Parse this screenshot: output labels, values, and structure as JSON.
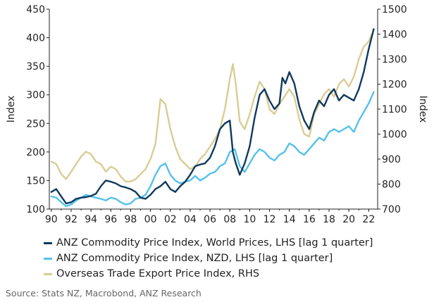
{
  "chart_data": {
    "type": "line",
    "ylabel_left": "Index",
    "ylabel_right": "Index",
    "ylim_left": [
      100,
      450
    ],
    "ylim_right": [
      700,
      1500
    ],
    "xlim": [
      1989.8,
      2022.9
    ],
    "xticks": [
      "90",
      "92",
      "94",
      "96",
      "98",
      "00",
      "02",
      "04",
      "06",
      "08",
      "10",
      "12",
      "14",
      "16",
      "18",
      "20",
      "22"
    ],
    "yticks_left": [
      "100",
      "150",
      "200",
      "250",
      "300",
      "350",
      "400",
      "450"
    ],
    "yticks_right": [
      "700",
      "800",
      "900",
      "1000",
      "1100",
      "1200",
      "1300",
      "1400",
      "1500"
    ],
    "legend_position": "bottom",
    "series": [
      {
        "name": "ANZ Commodity Price Index, World Prices, LHS [lag 1 quarter]",
        "axis": "left",
        "color": "#0f3a5c",
        "x": [
          1990,
          1990.5,
          1991,
          1991.5,
          1992,
          1992.5,
          1993,
          1993.5,
          1994,
          1994.5,
          1995,
          1995.5,
          1996,
          1996.5,
          1997,
          1997.5,
          1998,
          1998.5,
          1999,
          1999.5,
          2000,
          2000.5,
          2001,
          2001.5,
          2002,
          2002.5,
          2003,
          2003.5,
          2004,
          2004.5,
          2005,
          2005.5,
          2006,
          2006.5,
          2007,
          2007.5,
          2008,
          2008.3,
          2008.6,
          2009,
          2009.5,
          2010,
          2010.5,
          2011,
          2011.5,
          2012,
          2012.5,
          2013,
          2013.3,
          2013.6,
          2014,
          2014.5,
          2015,
          2015.5,
          2016,
          2016.5,
          2017,
          2017.5,
          2018,
          2018.5,
          2019,
          2019.5,
          2020,
          2020.5,
          2021,
          2021.5,
          2022,
          2022.5
        ],
        "y": [
          130,
          135,
          122,
          110,
          112,
          118,
          120,
          121,
          123,
          127,
          140,
          150,
          148,
          145,
          140,
          138,
          135,
          130,
          120,
          118,
          125,
          135,
          140,
          148,
          135,
          130,
          140,
          148,
          160,
          175,
          178,
          180,
          190,
          210,
          240,
          250,
          255,
          200,
          180,
          160,
          180,
          210,
          260,
          300,
          310,
          290,
          275,
          285,
          330,
          320,
          340,
          320,
          280,
          255,
          240,
          270,
          290,
          280,
          300,
          310,
          290,
          300,
          295,
          290,
          310,
          340,
          380,
          415
        ]
      },
      {
        "name": "ANZ Commodity Price Index, NZD, LHS [lag 1 quarter]",
        "axis": "left",
        "color": "#55c1e9",
        "x": [
          1990,
          1990.5,
          1991,
          1991.5,
          1992,
          1992.5,
          1993,
          1993.5,
          1994,
          1994.5,
          1995,
          1995.5,
          1996,
          1996.5,
          1997,
          1997.5,
          1998,
          1998.5,
          1999,
          1999.5,
          2000,
          2000.5,
          2001,
          2001.5,
          2002,
          2002.5,
          2003,
          2003.5,
          2004,
          2004.5,
          2005,
          2005.5,
          2006,
          2006.5,
          2007,
          2007.5,
          2008,
          2008.5,
          2009,
          2009.5,
          2010,
          2010.5,
          2011,
          2011.5,
          2012,
          2012.5,
          2013,
          2013.5,
          2014,
          2014.5,
          2015,
          2015.5,
          2016,
          2016.5,
          2017,
          2017.5,
          2018,
          2018.5,
          2019,
          2019.5,
          2020,
          2020.5,
          2021,
          2021.5,
          2022,
          2022.5
        ],
        "y": [
          122,
          120,
          112,
          105,
          108,
          115,
          120,
          125,
          122,
          120,
          118,
          115,
          120,
          118,
          112,
          108,
          110,
          118,
          120,
          125,
          140,
          160,
          175,
          180,
          160,
          150,
          145,
          148,
          150,
          158,
          150,
          155,
          162,
          165,
          175,
          180,
          200,
          205,
          175,
          165,
          180,
          195,
          205,
          200,
          190,
          185,
          195,
          200,
          215,
          210,
          200,
          195,
          205,
          215,
          225,
          220,
          235,
          240,
          235,
          240,
          245,
          235,
          255,
          270,
          285,
          305
        ]
      },
      {
        "name": "Overseas Trade Export Price Index, RHS",
        "axis": "right",
        "color": "#d9cc95",
        "x": [
          1990,
          1990.5,
          1991,
          1991.5,
          1992,
          1992.5,
          1993,
          1993.5,
          1994,
          1994.5,
          1995,
          1995.5,
          1996,
          1996.5,
          1997,
          1997.5,
          1998,
          1998.5,
          1999,
          1999.5,
          2000,
          2000.5,
          2001,
          2001.5,
          2002,
          2002.5,
          2003,
          2003.5,
          2004,
          2004.5,
          2005,
          2005.5,
          2006,
          2006.5,
          2007,
          2007.5,
          2008,
          2008.3,
          2008.6,
          2009,
          2009.5,
          2010,
          2010.5,
          2011,
          2011.5,
          2012,
          2012.5,
          2013,
          2013.5,
          2014,
          2014.5,
          2015,
          2015.5,
          2016,
          2016.5,
          2017,
          2017.5,
          2018,
          2018.5,
          2019,
          2019.5,
          2020,
          2020.5,
          2021,
          2021.5,
          2022,
          2022.3
        ],
        "y": [
          890,
          880,
          840,
          820,
          850,
          880,
          910,
          930,
          920,
          890,
          880,
          850,
          870,
          860,
          830,
          810,
          810,
          820,
          840,
          860,
          900,
          960,
          1140,
          1120,
          1020,
          950,
          900,
          880,
          860,
          870,
          900,
          920,
          950,
          980,
          1020,
          1100,
          1220,
          1280,
          1200,
          1050,
          1020,
          1080,
          1150,
          1210,
          1180,
          1100,
          1080,
          1120,
          1150,
          1180,
          1150,
          1060,
          1000,
          990,
          1080,
          1120,
          1160,
          1180,
          1150,
          1200,
          1220,
          1190,
          1230,
          1300,
          1350,
          1370,
          1400
        ]
      }
    ]
  },
  "source": "Source: Stats NZ, Macrobond, ANZ Research"
}
